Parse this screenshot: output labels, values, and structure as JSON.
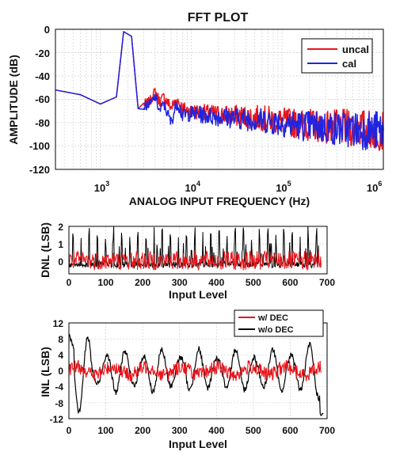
{
  "chart_data": [
    {
      "type": "line",
      "title": "FFT PLOT",
      "xlabel": "ANALOG INPUT FREQUENCY (Hz)",
      "ylabel": "AMPLITUDE (dB)",
      "xscale": "log",
      "xlim": [
        320,
        1300000
      ],
      "ylim": [
        -120,
        0
      ],
      "x_ticks": [
        1000,
        10000,
        100000,
        1000000
      ],
      "x_tick_base": [
        "10",
        "10",
        "10",
        "10"
      ],
      "x_tick_exp": [
        "3",
        "4",
        "5",
        "6"
      ],
      "y_ticks": [
        "0",
        "-20",
        "-40",
        "-60",
        "-80",
        "-100",
        "-120"
      ],
      "grid": true,
      "legend_position": "top-right",
      "series": [
        {
          "name": "uncal",
          "color": "#e8141b",
          "x": [
            320,
            600,
            1000,
            1500,
            1800,
            2200,
            2600,
            3000,
            3500,
            4000,
            4500,
            5000,
            6000,
            7000,
            8000,
            10000,
            15000,
            30000,
            60000,
            100000,
            200000,
            400000,
            700000,
            1000000,
            1300000
          ],
          "y": [
            -52,
            -56,
            -64,
            -58,
            -2,
            -6,
            -68,
            -64,
            -62,
            -53,
            -62,
            -58,
            -67,
            -60,
            -68,
            -70,
            -72,
            -74,
            -76,
            -79,
            -82,
            -84,
            -85,
            -86,
            -86
          ]
        },
        {
          "name": "cal",
          "color": "#1f24e0",
          "x": [
            320,
            600,
            1000,
            1500,
            1800,
            2200,
            2600,
            3000,
            3500,
            4000,
            4500,
            5000,
            6000,
            7000,
            8000,
            10000,
            15000,
            30000,
            60000,
            100000,
            200000,
            400000,
            700000,
            1000000,
            1300000
          ],
          "y": [
            -52,
            -56,
            -64,
            -58,
            -2,
            -6,
            -68,
            -66,
            -64,
            -58,
            -70,
            -64,
            -80,
            -62,
            -74,
            -72,
            -74,
            -76,
            -78,
            -80,
            -83,
            -85,
            -86,
            -87,
            -87
          ]
        }
      ]
    },
    {
      "type": "line",
      "title": "",
      "xlabel": "Input Level",
      "ylabel": "DNL (LSB)",
      "xlim": [
        0,
        700
      ],
      "ylim": [
        -0.7,
        2
      ],
      "x_ticks": [
        "0",
        "100",
        "200",
        "300",
        "400",
        "500",
        "600",
        "700"
      ],
      "y_ticks": [
        "2",
        "1",
        "0"
      ],
      "grid": true,
      "series": [
        {
          "name": "",
          "color": "#e8141b",
          "x_range": [
            0,
            685
          ],
          "y_range": [
            -0.5,
            0.6
          ],
          "pattern": "noise"
        },
        {
          "name": "",
          "color": "#000000",
          "x_range": [
            0,
            685
          ],
          "y_range": [
            -0.5,
            2.0
          ],
          "pattern": "spikes"
        }
      ]
    },
    {
      "type": "line",
      "title": "",
      "xlabel": "Input Level",
      "ylabel": "INL (LSB)",
      "xlim": [
        0,
        700
      ],
      "ylim": [
        -12,
        12
      ],
      "x_ticks": [
        "0",
        "100",
        "200",
        "300",
        "400",
        "500",
        "600",
        "700"
      ],
      "y_ticks": [
        "12",
        "8",
        "4",
        "0",
        "-4",
        "-8",
        "-12"
      ],
      "grid": true,
      "legend_position": "top-right",
      "series": [
        {
          "name": "w/ DEC",
          "color": "#e8141b",
          "x_range": [
            0,
            685
          ],
          "y_range": [
            -3,
            3
          ],
          "pattern": "noise"
        },
        {
          "name": "w/o DEC",
          "color": "#000000",
          "x_range": [
            0,
            690
          ],
          "y_range": [
            -12,
            10
          ],
          "pattern": "oscillation"
        }
      ]
    }
  ]
}
